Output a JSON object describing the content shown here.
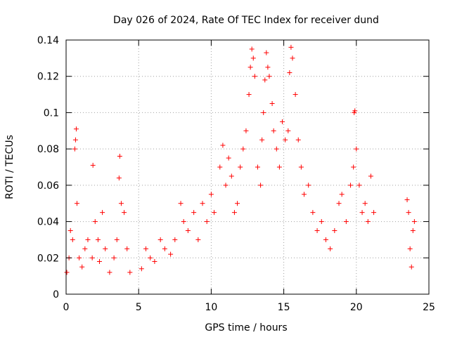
{
  "chart_data": {
    "type": "scatter",
    "title": "Day 026 of 2024, Rate Of TEC Index for receiver dund",
    "xlabel": "GPS time / hours",
    "ylabel": "ROTI / TECUs",
    "xlim": [
      0,
      25
    ],
    "ylim": [
      0,
      0.14
    ],
    "x_ticks": [
      0,
      5,
      10,
      15,
      20,
      25
    ],
    "x_tick_labels": [
      "0",
      "5",
      "10",
      "15",
      "20",
      "25"
    ],
    "y_ticks": [
      0,
      0.02,
      0.04,
      0.06,
      0.08,
      0.1,
      0.12,
      0.14
    ],
    "y_tick_labels": [
      "0",
      "0.02",
      "0.04",
      "0.06",
      "0.08",
      "0.1",
      "0.12",
      "0.14"
    ],
    "grid": true,
    "marker": "plus",
    "marker_color": "#ff0000",
    "series": [
      {
        "x": [
          0.05,
          0.2,
          0.3,
          0.45,
          0.6,
          0.65,
          0.7,
          0.75,
          0.9,
          1.1,
          1.3,
          1.5,
          1.8,
          1.85,
          2.0,
          2.2,
          2.3,
          2.5,
          2.7,
          3.0,
          3.3,
          3.5,
          3.65,
          3.7,
          3.8,
          4.0,
          4.2,
          4.4,
          5.2,
          5.5,
          5.8,
          6.1,
          6.5,
          6.8,
          7.2,
          7.5,
          7.9,
          8.1,
          8.4,
          8.8,
          9.1,
          9.4,
          9.7,
          10.0,
          10.2,
          10.6,
          10.8,
          11.0,
          11.2,
          11.4,
          11.6,
          11.8,
          12.0,
          12.2,
          12.4,
          12.6,
          12.7,
          12.8,
          12.9,
          13.0,
          13.2,
          13.4,
          13.5,
          13.6,
          13.7,
          13.8,
          13.9,
          14.0,
          14.2,
          14.3,
          14.5,
          14.7,
          14.9,
          15.1,
          15.3,
          15.4,
          15.5,
          15.6,
          15.8,
          16.0,
          16.2,
          16.4,
          16.7,
          17.0,
          17.3,
          17.6,
          17.9,
          18.2,
          18.5,
          18.8,
          19.0,
          19.3,
          19.6,
          19.8,
          19.85,
          19.9,
          20.0,
          20.2,
          20.4,
          20.6,
          20.8,
          21.0,
          21.2,
          23.5,
          23.6,
          23.7,
          23.8,
          23.9,
          24.0
        ],
        "y": [
          0.012,
          0.02,
          0.035,
          0.03,
          0.08,
          0.085,
          0.091,
          0.05,
          0.02,
          0.015,
          0.025,
          0.03,
          0.02,
          0.071,
          0.04,
          0.03,
          0.018,
          0.045,
          0.025,
          0.012,
          0.02,
          0.03,
          0.064,
          0.076,
          0.05,
          0.045,
          0.025,
          0.012,
          0.014,
          0.025,
          0.02,
          0.018,
          0.03,
          0.025,
          0.022,
          0.03,
          0.05,
          0.04,
          0.035,
          0.045,
          0.03,
          0.05,
          0.04,
          0.055,
          0.045,
          0.07,
          0.082,
          0.06,
          0.075,
          0.065,
          0.045,
          0.05,
          0.07,
          0.08,
          0.09,
          0.11,
          0.125,
          0.135,
          0.13,
          0.12,
          0.07,
          0.06,
          0.085,
          0.1,
          0.118,
          0.133,
          0.125,
          0.12,
          0.105,
          0.09,
          0.08,
          0.07,
          0.095,
          0.085,
          0.09,
          0.122,
          0.136,
          0.13,
          0.11,
          0.085,
          0.07,
          0.055,
          0.06,
          0.045,
          0.035,
          0.04,
          0.03,
          0.025,
          0.035,
          0.05,
          0.055,
          0.04,
          0.06,
          0.07,
          0.1,
          0.101,
          0.08,
          0.06,
          0.045,
          0.05,
          0.04,
          0.065,
          0.045,
          0.052,
          0.045,
          0.025,
          0.015,
          0.035,
          0.04
        ]
      }
    ]
  }
}
